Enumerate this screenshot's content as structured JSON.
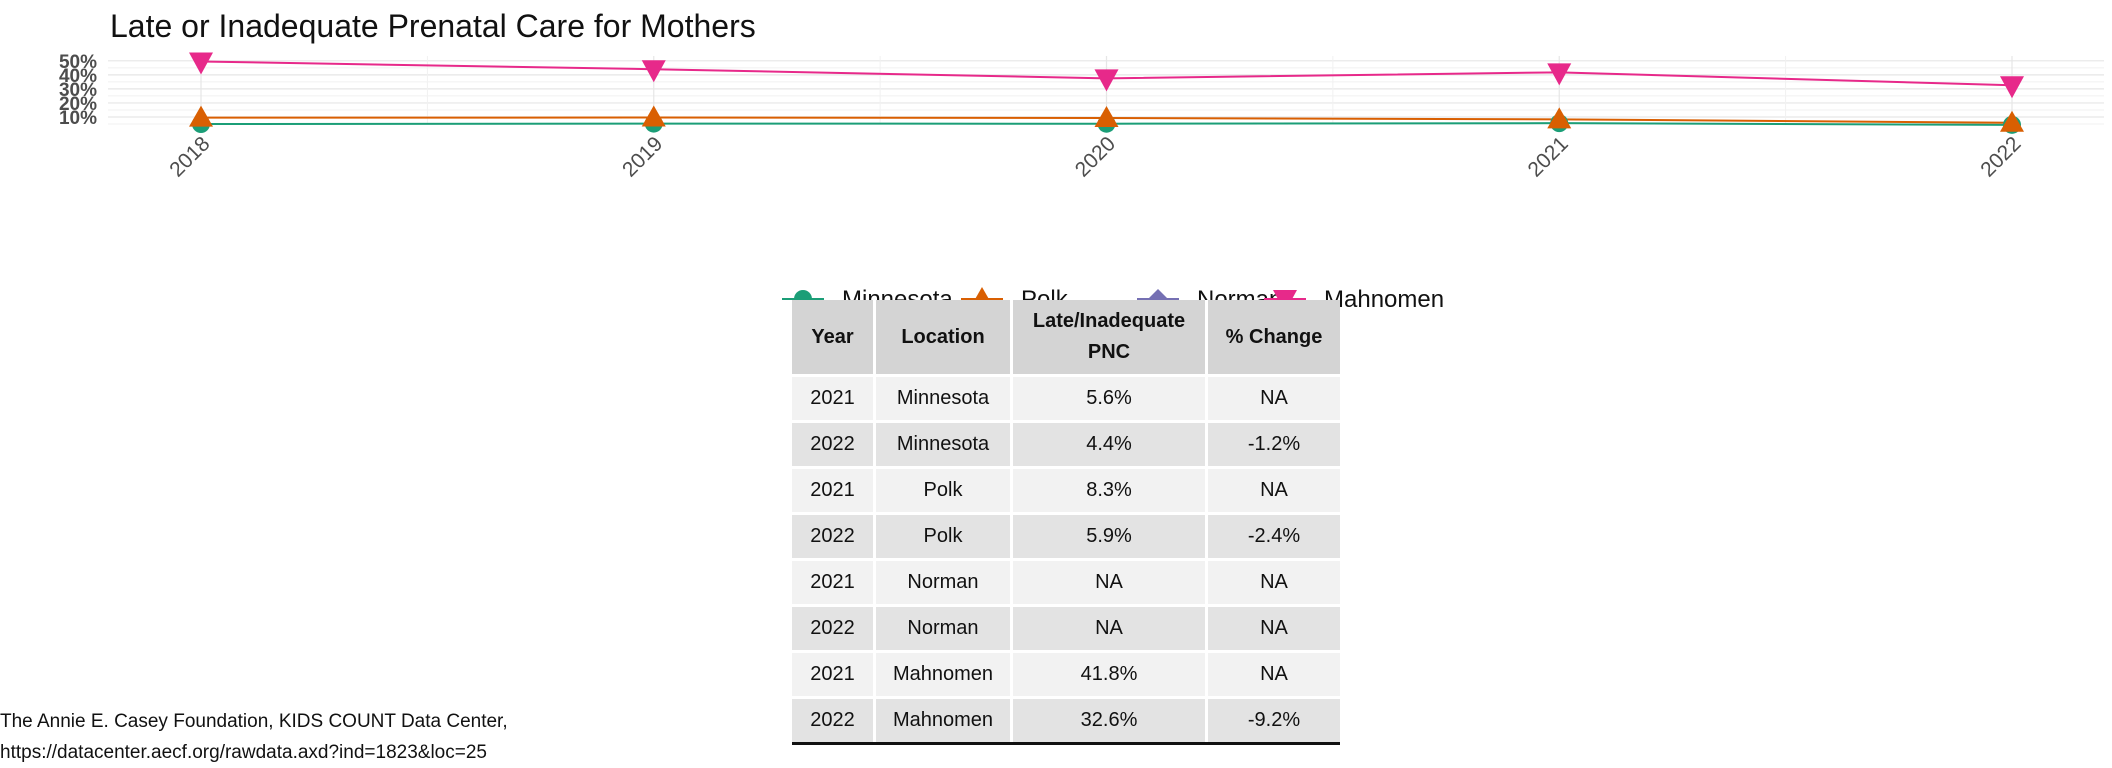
{
  "chart_data": {
    "type": "line",
    "title": "Late or Inadequate Prenatal Care for Mothers",
    "x": [
      "2018",
      "2019",
      "2020",
      "2021",
      "2022"
    ],
    "y_ticks": [
      "10%",
      "20%",
      "30%",
      "40%",
      "50%"
    ],
    "ylim": [
      5,
      52
    ],
    "grid": true,
    "legend_position": "bottom",
    "series": [
      {
        "name": "Minnesota",
        "color": "#1b9e77",
        "marker": "circle",
        "values": [
          5.0,
          5.3,
          5.2,
          5.6,
          4.4
        ]
      },
      {
        "name": "Polk",
        "color": "#d95f02",
        "marker": "triangle-up",
        "values": [
          9.5,
          9.6,
          9.3,
          8.3,
          5.9
        ]
      },
      {
        "name": "Norman",
        "color": "#7570b3",
        "marker": "diamond",
        "values": [
          null,
          null,
          null,
          null,
          null
        ]
      },
      {
        "name": "Mahnomen",
        "color": "#e7298a",
        "marker": "triangle-down",
        "values": [
          49.5,
          44.0,
          37.5,
          41.8,
          32.6
        ]
      }
    ]
  },
  "table": {
    "headers": {
      "year": "Year",
      "location": "Location",
      "pnc_line1": "Late/Inadequate",
      "pnc_line2": "PNC",
      "change": "% Change"
    },
    "rows": [
      {
        "year": "2021",
        "location": "Minnesota",
        "pnc": "5.6%",
        "change": "NA"
      },
      {
        "year": "2022",
        "location": "Minnesota",
        "pnc": "4.4%",
        "change": "-1.2%"
      },
      {
        "year": "2021",
        "location": "Polk",
        "pnc": "8.3%",
        "change": "NA"
      },
      {
        "year": "2022",
        "location": "Polk",
        "pnc": "5.9%",
        "change": "-2.4%"
      },
      {
        "year": "2021",
        "location": "Norman",
        "pnc": "NA",
        "change": "NA"
      },
      {
        "year": "2022",
        "location": "Norman",
        "pnc": "NA",
        "change": "NA"
      },
      {
        "year": "2021",
        "location": "Mahnomen",
        "pnc": "41.8%",
        "change": "NA"
      },
      {
        "year": "2022",
        "location": "Mahnomen",
        "pnc": "32.6%",
        "change": "-9.2%"
      }
    ]
  },
  "source": {
    "line1": "The Annie E. Casey Foundation, KIDS COUNT Data Center,",
    "line2": "https://datacenter.aecf.org/rawdata.axd?ind=1823&loc=25"
  }
}
